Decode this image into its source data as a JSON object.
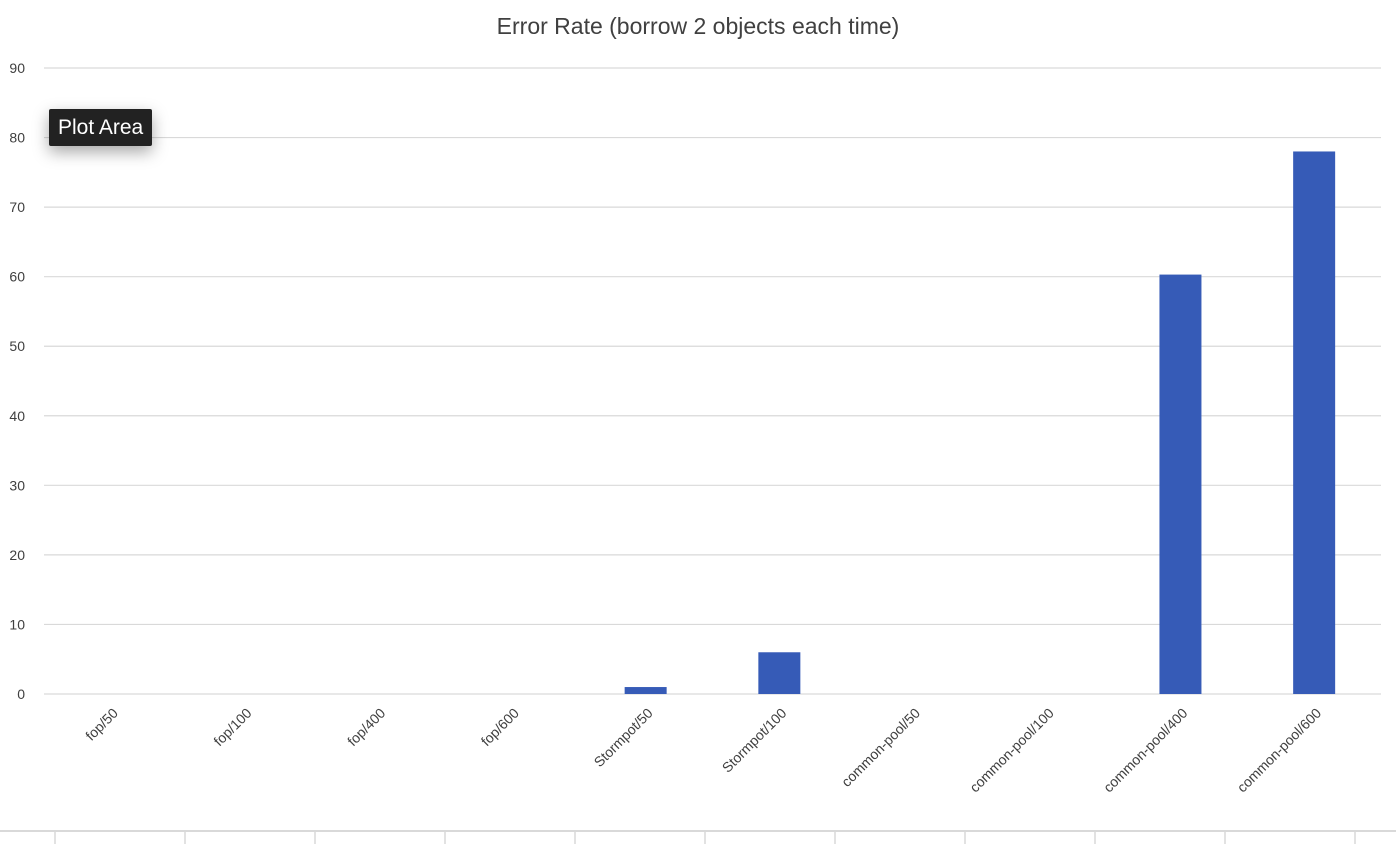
{
  "chart_data": {
    "type": "bar",
    "title": "Error Rate (borrow 2 objects each time)",
    "xlabel": "",
    "ylabel": "",
    "categories": [
      "fop/50",
      "fop/100",
      "fop/400",
      "fop/600",
      "Stormpot/50",
      "Stormpot/100",
      "common-pool/50",
      "common-pool/100",
      "common-pool/400",
      "common-pool/600"
    ],
    "values": [
      0,
      0,
      0,
      0,
      1,
      6,
      0,
      0,
      60.3,
      78
    ],
    "ylim": [
      0,
      90
    ],
    "yticks": [
      "0",
      "10",
      "20",
      "30",
      "40",
      "50",
      "60",
      "70",
      "80",
      "90"
    ],
    "grid": true,
    "legend": "none",
    "bar_color": "#365bb7",
    "grid_color": "#d9d9d9",
    "text_color": "#404040",
    "title_color": "#404040"
  },
  "tooltip": {
    "label": "Plot Area",
    "background": "#222222"
  }
}
